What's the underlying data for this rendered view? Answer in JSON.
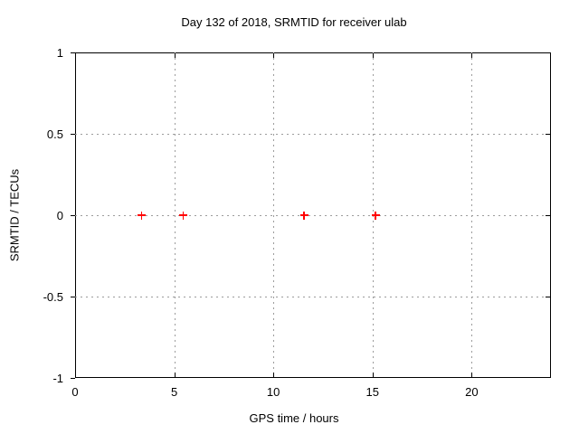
{
  "window": {
    "background": "#ffffff"
  },
  "chart_data": {
    "type": "scatter",
    "title": "Day 132 of 2018, SRMTID for receiver ulab",
    "xlabel": "GPS time / hours",
    "ylabel": "SRMTID / TECUs",
    "xlim": [
      0,
      24
    ],
    "ylim": [
      -1,
      1
    ],
    "xticks": [
      "0",
      "5",
      "10",
      "15",
      "20"
    ],
    "yticks": [
      "-1",
      "-0.5",
      "0",
      "0.5",
      "1"
    ],
    "grid": "dashed-major",
    "legend_position": "none",
    "colors": {
      "marker": "#ff0000",
      "grid": "#9c9c9c",
      "axis": "#000000",
      "text": "#000000"
    },
    "series": [
      {
        "name": "SRMTID",
        "marker": "plus",
        "x": [
          3.35,
          5.45,
          11.55,
          15.15
        ],
        "y": [
          0,
          0,
          0,
          0
        ]
      }
    ]
  }
}
